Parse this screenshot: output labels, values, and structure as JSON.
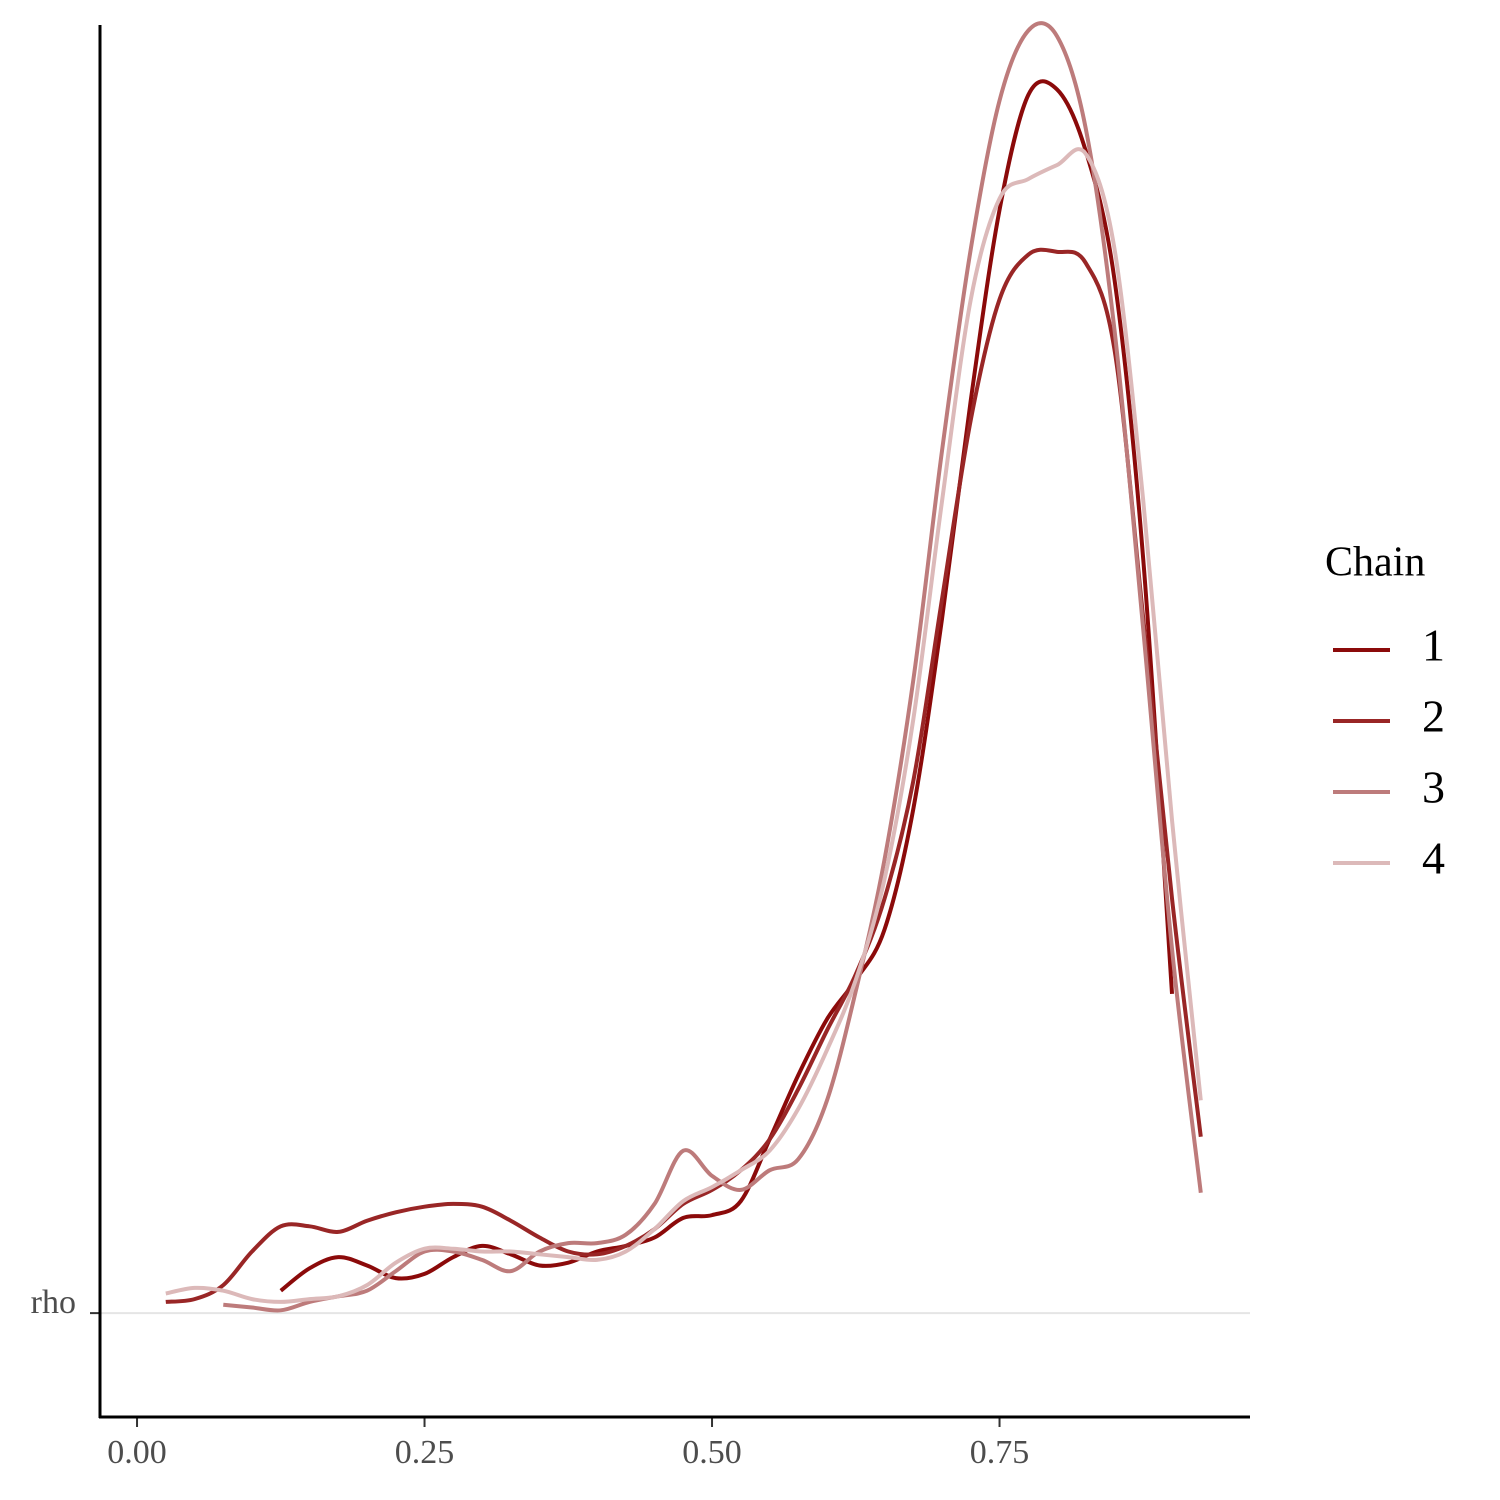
{
  "chart_data": {
    "type": "line",
    "x": [
      0,
      0.025,
      0.05,
      0.075,
      0.1,
      0.125,
      0.15,
      0.175,
      0.2,
      0.225,
      0.25,
      0.275,
      0.3,
      0.325,
      0.35,
      0.375,
      0.4,
      0.425,
      0.45,
      0.475,
      0.5,
      0.525,
      0.55,
      0.575,
      0.6,
      0.625,
      0.65,
      0.675,
      0.7,
      0.725,
      0.75,
      0.775,
      0.8,
      0.825,
      0.85,
      0.875,
      0.9,
      0.925
    ],
    "series": [
      {
        "name": "1",
        "color": "#8b0a0a",
        "values": [
          null,
          null,
          null,
          null,
          null,
          0.08,
          0.16,
          0.2,
          0.17,
          0.125,
          0.14,
          0.2,
          0.24,
          0.21,
          0.17,
          0.18,
          0.22,
          0.24,
          0.27,
          0.34,
          0.35,
          0.4,
          0.62,
          0.85,
          1.05,
          1.19,
          1.37,
          1.8,
          2.48,
          3.26,
          3.94,
          4.35,
          4.37,
          4.15,
          3.69,
          2.69,
          1.14,
          null
        ]
      },
      {
        "name": "2",
        "color": "#992626",
        "values": [
          null,
          0.04,
          0.05,
          0.1,
          0.22,
          0.31,
          0.31,
          0.29,
          0.33,
          0.36,
          0.38,
          0.39,
          0.38,
          0.33,
          0.27,
          0.22,
          0.21,
          0.24,
          0.3,
          0.39,
          0.44,
          0.51,
          0.62,
          0.8,
          1.01,
          1.21,
          1.48,
          1.9,
          2.55,
          3.19,
          3.62,
          3.78,
          3.79,
          3.75,
          3.44,
          2.48,
          1.48,
          0.63
        ]
      },
      {
        "name": "3",
        "color": "#bd7b7b",
        "values": [
          null,
          null,
          null,
          0.03,
          0.02,
          0.01,
          0.04,
          0.06,
          0.08,
          0.15,
          0.22,
          0.22,
          0.19,
          0.15,
          0.22,
          0.25,
          0.25,
          0.28,
          0.39,
          0.58,
          0.49,
          0.44,
          0.51,
          0.55,
          0.76,
          1.15,
          1.62,
          2.26,
          3.08,
          3.8,
          4.33,
          4.58,
          4.56,
          4.23,
          3.51,
          2.44,
          1.3,
          0.43
        ]
      },
      {
        "name": "4",
        "color": "#dcb9b9",
        "values": [
          null,
          0.07,
          0.09,
          0.08,
          0.05,
          0.04,
          0.05,
          0.06,
          0.1,
          0.18,
          0.23,
          0.23,
          0.22,
          0.22,
          0.21,
          0.2,
          0.19,
          0.22,
          0.3,
          0.4,
          0.45,
          0.51,
          0.58,
          0.73,
          0.94,
          1.19,
          1.55,
          2.12,
          2.9,
          3.62,
          3.98,
          4.05,
          4.1,
          4.14,
          3.8,
          2.9,
          1.76,
          0.76
        ]
      }
    ],
    "legend_title": "Chain",
    "legend_position": "right",
    "xlim": [
      -0.0322,
      0.9678
    ],
    "xticks": [
      {
        "value": 0,
        "label": "0.00"
      },
      0.25,
      {
        "value": 0.5,
        "label": "0.50"
      },
      0.75
    ],
    "ylim": [
      -0.371,
      4.618
    ],
    "yticks": [
      {
        "value": 0,
        "label": "rho"
      }
    ],
    "grid": true
  }
}
